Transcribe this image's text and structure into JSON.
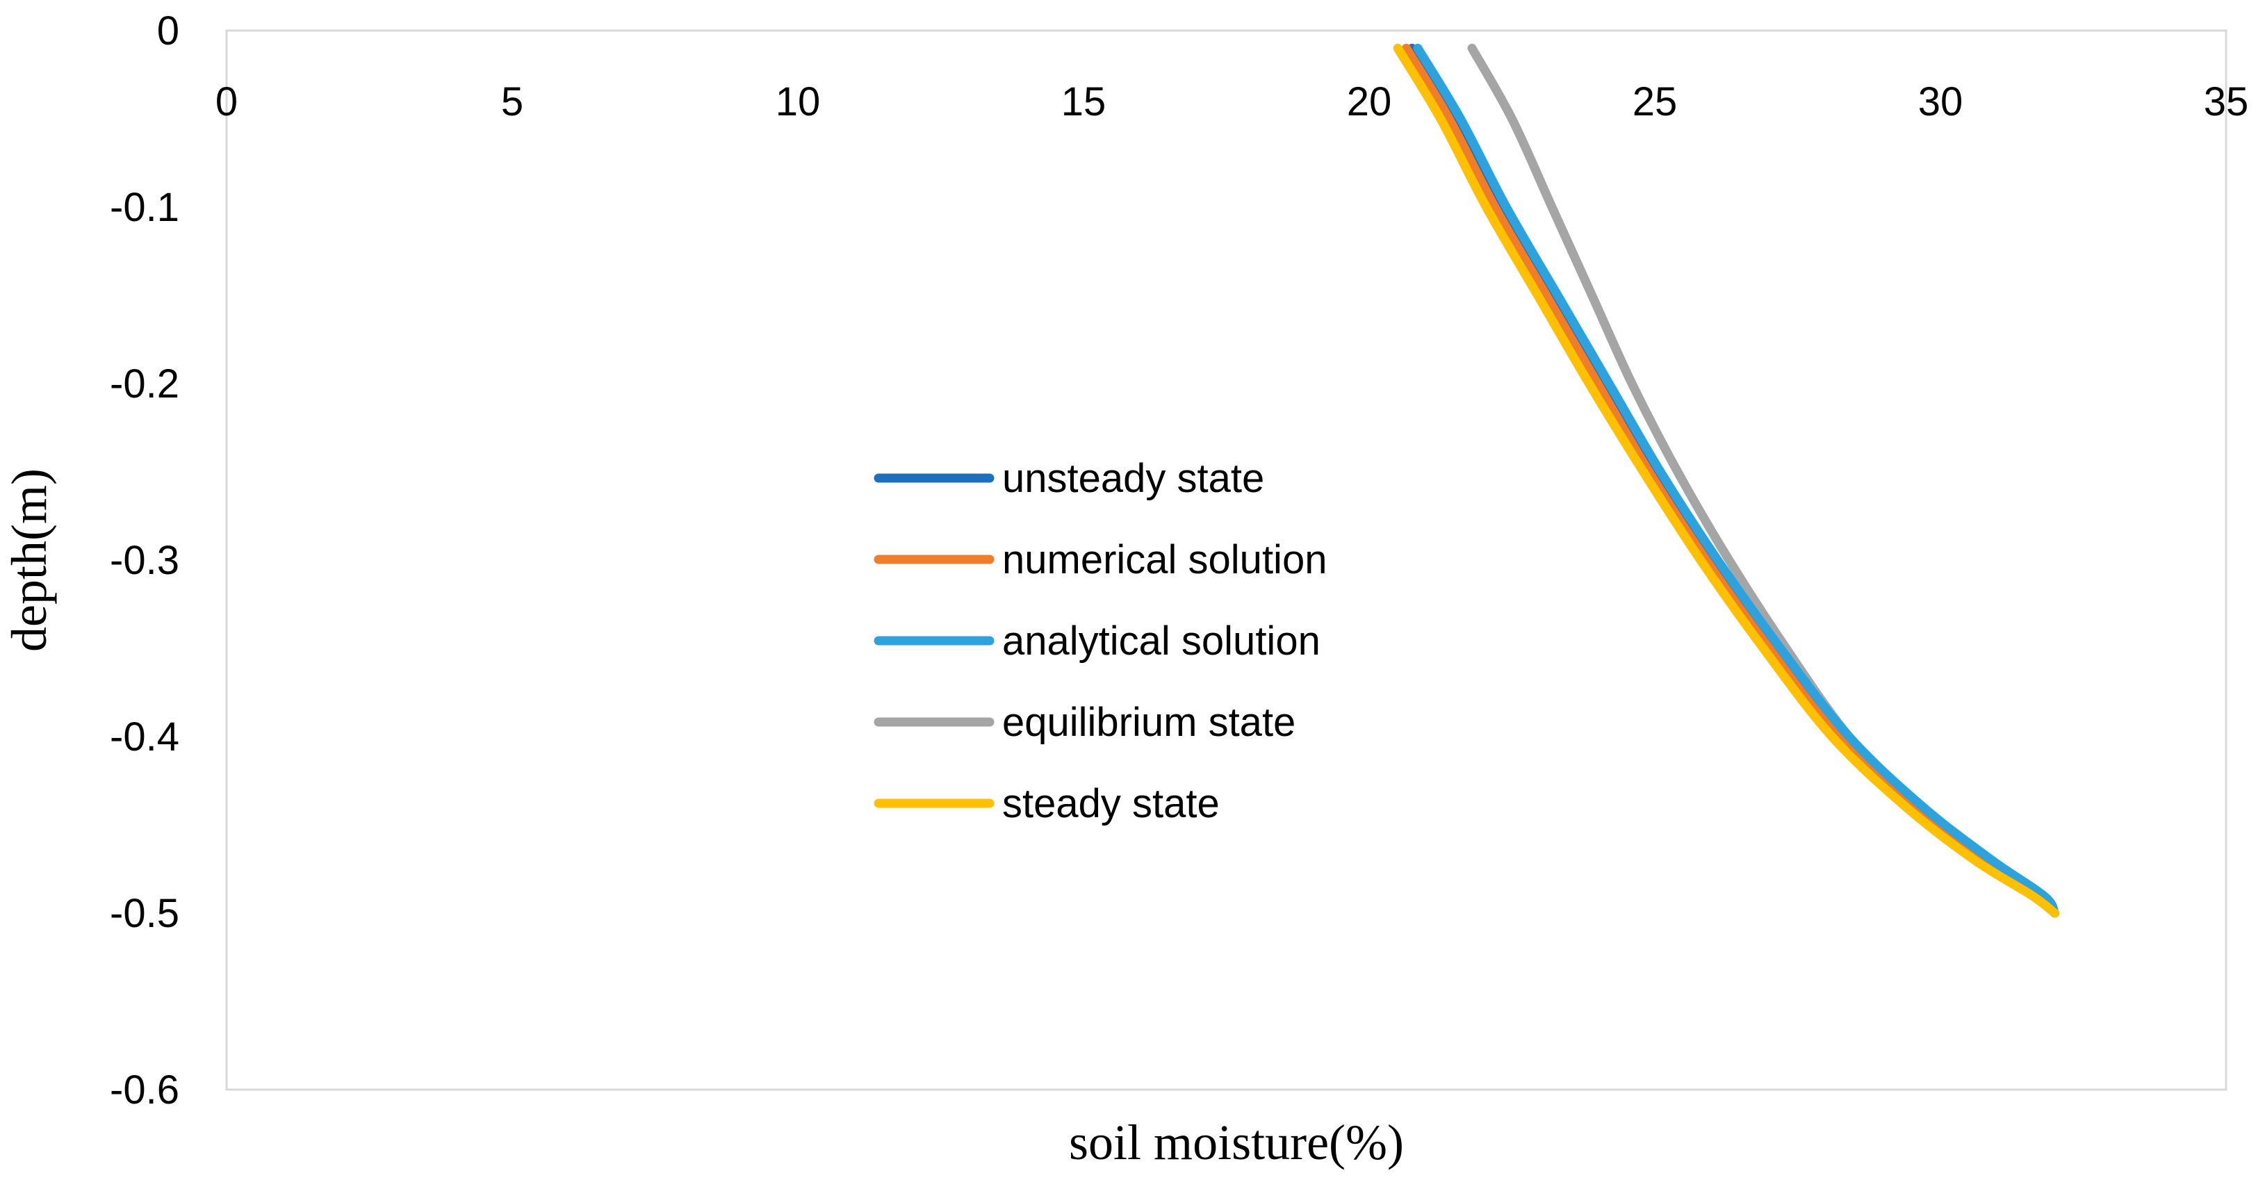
{
  "chart_data": {
    "type": "line",
    "title": "",
    "xlabel": "soil moisture(%)",
    "ylabel": "depth(m)",
    "xlim": [
      0,
      35
    ],
    "ylim": [
      -0.6,
      0
    ],
    "xticks": [
      "0",
      "5",
      "10",
      "15",
      "20",
      "25",
      "30",
      "35"
    ],
    "yticks": [
      "0",
      "-0.1",
      "-0.2",
      "-0.3",
      "-0.4",
      "-0.5",
      "-0.6"
    ],
    "x_axis_position": "top",
    "grid": false,
    "legend_position": "center",
    "series": [
      {
        "name": "unsteady state",
        "color": "#1F6FBF",
        "points": [
          [
            20.75,
            -0.01
          ],
          [
            21.5,
            -0.05
          ],
          [
            22.3,
            -0.1
          ],
          [
            23.2,
            -0.15
          ],
          [
            24.1,
            -0.2
          ],
          [
            25.0,
            -0.25
          ],
          [
            26.0,
            -0.3
          ],
          [
            27.1,
            -0.35
          ],
          [
            28.3,
            -0.4
          ],
          [
            29.6,
            -0.44
          ],
          [
            30.8,
            -0.47
          ],
          [
            31.8,
            -0.49
          ],
          [
            32.0,
            -0.5
          ]
        ]
      },
      {
        "name": "numerical solution",
        "color": "#F07D2A",
        "points": [
          [
            20.65,
            -0.01
          ],
          [
            21.4,
            -0.05
          ],
          [
            22.2,
            -0.1
          ],
          [
            23.1,
            -0.15
          ],
          [
            24.0,
            -0.2
          ],
          [
            24.9,
            -0.25
          ],
          [
            25.9,
            -0.3
          ],
          [
            27.0,
            -0.35
          ],
          [
            28.2,
            -0.4
          ],
          [
            29.5,
            -0.44
          ],
          [
            30.7,
            -0.47
          ],
          [
            31.7,
            -0.49
          ],
          [
            32.0,
            -0.5
          ]
        ]
      },
      {
        "name": "analytical solution",
        "color": "#2EA2DC",
        "points": [
          [
            20.85,
            -0.01
          ],
          [
            21.6,
            -0.05
          ],
          [
            22.4,
            -0.1
          ],
          [
            23.3,
            -0.15
          ],
          [
            24.2,
            -0.2
          ],
          [
            25.1,
            -0.25
          ],
          [
            26.1,
            -0.3
          ],
          [
            27.2,
            -0.35
          ],
          [
            28.4,
            -0.4
          ],
          [
            29.7,
            -0.44
          ],
          [
            30.9,
            -0.47
          ],
          [
            31.8,
            -0.49
          ],
          [
            32.0,
            -0.5
          ]
        ]
      },
      {
        "name": "equilibrium state",
        "color": "#A5A5A5",
        "points": [
          [
            21.8,
            -0.01
          ],
          [
            22.5,
            -0.05
          ],
          [
            23.2,
            -0.1
          ],
          [
            23.9,
            -0.15
          ],
          [
            24.6,
            -0.2
          ],
          [
            25.4,
            -0.25
          ],
          [
            26.3,
            -0.3
          ],
          [
            27.3,
            -0.35
          ],
          [
            28.4,
            -0.4
          ],
          [
            29.6,
            -0.44
          ],
          [
            30.8,
            -0.47
          ],
          [
            31.7,
            -0.49
          ],
          [
            32.0,
            -0.5
          ]
        ]
      },
      {
        "name": "steady state",
        "color": "#FFC000",
        "points": [
          [
            20.5,
            -0.01
          ],
          [
            21.25,
            -0.05
          ],
          [
            22.05,
            -0.1
          ],
          [
            22.95,
            -0.15
          ],
          [
            23.85,
            -0.2
          ],
          [
            24.8,
            -0.25
          ],
          [
            25.8,
            -0.3
          ],
          [
            26.9,
            -0.35
          ],
          [
            28.1,
            -0.4
          ],
          [
            29.4,
            -0.44
          ],
          [
            30.6,
            -0.47
          ],
          [
            31.6,
            -0.49
          ],
          [
            32.0,
            -0.5
          ]
        ]
      }
    ]
  }
}
